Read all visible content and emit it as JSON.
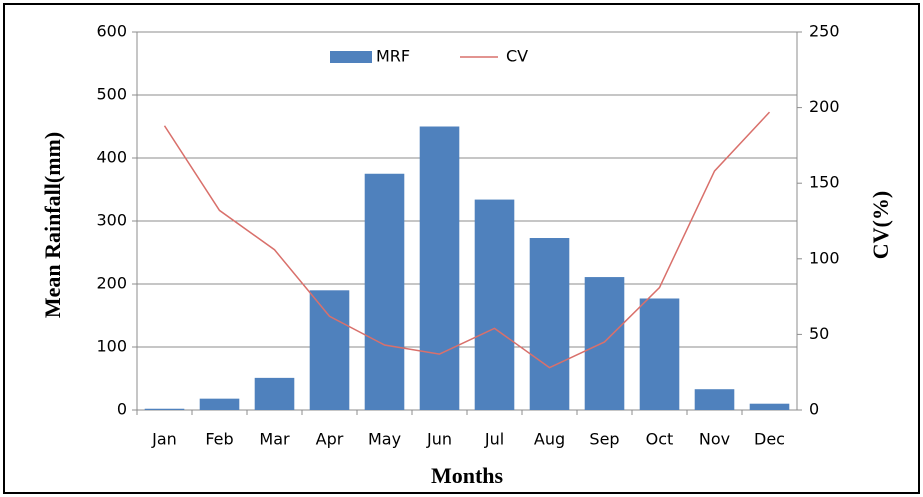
{
  "chart_data": {
    "type": "bar-line",
    "x_label": "Months",
    "y_label": "Mean Rainfall(mm)",
    "y2_label": "CV(%)",
    "categories": [
      "Jan",
      "Feb",
      "Mar",
      "Apr",
      "May",
      "Jun",
      "Jul",
      "Aug",
      "Sep",
      "Oct",
      "Nov",
      "Dec"
    ],
    "series": [
      {
        "name": "MRF",
        "type": "bar",
        "color": "#4f81bd",
        "values": [
          2,
          18,
          51,
          190,
          375,
          450,
          334,
          273,
          211,
          177,
          33,
          10
        ]
      },
      {
        "name": "CV",
        "type": "line",
        "color": "#d9706b",
        "axis": "y2",
        "values": [
          188,
          132,
          106,
          62,
          43,
          37,
          54,
          28,
          45,
          81,
          158,
          197
        ]
      }
    ],
    "ylim": [
      0,
      600
    ],
    "yticks": [
      0,
      100,
      200,
      300,
      400,
      500,
      600
    ],
    "y2lim": [
      0,
      250
    ],
    "y2ticks": [
      0,
      50,
      100,
      150,
      200,
      250
    ],
    "grid": true,
    "legend": "top"
  }
}
